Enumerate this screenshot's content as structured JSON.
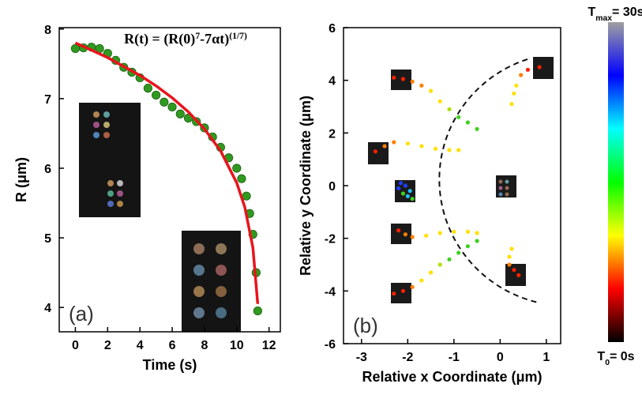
{
  "chart_data": [
    {
      "type": "scatter",
      "panel_label": "(a)",
      "x_label": "Time (s)",
      "y_label": "R (μm)",
      "annotation": [
        {
          "text": "R(t) = (R(0)"
        },
        {
          "text": "7",
          "sup": true
        },
        {
          "text": "-7αt)"
        },
        {
          "text": "(1/7)",
          "sup": true
        }
      ],
      "xlim": [
        -1,
        12.7
      ],
      "ylim": [
        3.65,
        8.02
      ],
      "xticks": [
        0,
        2,
        4,
        6,
        8,
        10,
        12
      ],
      "yticks": [
        4,
        5,
        6,
        7,
        8
      ],
      "series": [
        {
          "mode": "markers",
          "color": "#2f9a1f",
          "x": [
            0,
            0.5,
            1,
            1.5,
            2,
            2.5,
            3,
            3.5,
            4,
            4.5,
            5,
            5.5,
            6,
            6.5,
            7,
            7.5,
            8,
            8.5,
            9,
            9.5,
            10,
            10.3,
            10.6,
            10.8,
            11,
            11.2,
            11.3
          ],
          "y": [
            7.72,
            7.73,
            7.74,
            7.72,
            7.65,
            7.55,
            7.45,
            7.38,
            7.3,
            7.15,
            7.05,
            6.95,
            6.88,
            6.78,
            6.72,
            6.67,
            6.58,
            6.45,
            6.3,
            6.15,
            6.0,
            5.85,
            5.6,
            5.35,
            5.05,
            4.5,
            3.95
          ]
        },
        {
          "mode": "line",
          "color": "#e8141c",
          "x": [
            0,
            1,
            2,
            4,
            5,
            6,
            7,
            8,
            9,
            10,
            10.5,
            11,
            11.3
          ],
          "y": [
            7.8,
            7.698,
            7.589,
            7.334,
            7.184,
            7.012,
            6.81,
            6.565,
            6.249,
            5.789,
            5.44,
            4.86,
            4.05
          ]
        }
      ]
    },
    {
      "type": "scatter",
      "panel_label": "(b)",
      "x_label": "Relative x Coordinate (μm)",
      "y_label": "Relative y Coordinate (μm)",
      "xlim": [
        -3.39,
        1.31
      ],
      "ylim": [
        -6,
        6
      ],
      "xticks": [
        -3,
        -2,
        -1,
        0,
        1
      ],
      "yticks": [
        -6,
        -4,
        -2,
        0,
        2,
        4,
        6
      ],
      "series": [
        {
          "mode": "markers",
          "x": [
            -2.3,
            -2.1,
            -1.9,
            -1.7,
            -1.5,
            -1.3,
            -1.1,
            -0.9,
            -0.7,
            -0.5
          ],
          "y": [
            4.1,
            4.05,
            3.95,
            3.8,
            3.6,
            3.2,
            2.9,
            2.6,
            2.4,
            2.15
          ],
          "colors": [
            "#ff2000",
            "#ff2000",
            "#ff8000",
            "#ff8000",
            "#ffe000",
            "#ffe000",
            "#b0e000",
            "#40d020",
            "#40d020",
            "#40d020"
          ]
        },
        {
          "mode": "markers",
          "x": [
            0.85,
            0.6,
            0.45,
            0.35,
            0.3,
            0.25
          ],
          "y": [
            4.5,
            4.4,
            4.2,
            3.8,
            3.5,
            3.1
          ],
          "colors": [
            "#ff2000",
            "#ff2000",
            "#ff8000",
            "#ffe000",
            "#ffe000",
            "#ffe000"
          ]
        },
        {
          "mode": "markers",
          "x": [
            -2.7,
            -2.5,
            -2.3,
            -2.0,
            -1.7,
            -1.4,
            -1.1,
            -0.9
          ],
          "y": [
            1.3,
            1.5,
            1.65,
            1.6,
            1.5,
            1.4,
            1.35,
            1.35
          ],
          "colors": [
            "#ff2000",
            "#ff8000",
            "#ff8000",
            "#ffe000",
            "#ffe000",
            "#ffe000",
            "#ffe000",
            "#ffe000"
          ]
        },
        {
          "mode": "markers",
          "x": [
            -2.2,
            -2.15,
            -2.05,
            -1.95,
            -2.0,
            -2.1,
            -1.9
          ],
          "y": [
            -0.1,
            0.1,
            0.0,
            -0.2,
            -0.4,
            -0.3,
            -0.5
          ],
          "colors": [
            "#2040ff",
            "#2040ff",
            "#2040ff",
            "#20c0ff",
            "#20c0ff",
            "#40d020",
            "#40d020"
          ]
        },
        {
          "mode": "markers",
          "x": [
            -2.2,
            -2.05,
            -1.9,
            -1.6,
            -1.3,
            -1.0,
            -0.7,
            -0.5
          ],
          "y": [
            -1.7,
            -1.85,
            -1.95,
            -1.9,
            -1.8,
            -1.75,
            -1.75,
            -1.8
          ],
          "colors": [
            "#ff2000",
            "#ff8000",
            "#ff8000",
            "#ffe000",
            "#ffe000",
            "#ffe000",
            "#ffe000",
            "#ffe000"
          ]
        },
        {
          "mode": "markers",
          "x": [
            -2.3,
            -2.1,
            -1.9,
            -1.7,
            -1.5,
            -1.3,
            -1.1,
            -0.9,
            -0.7,
            -0.5
          ],
          "y": [
            -4.1,
            -4.0,
            -3.85,
            -3.6,
            -3.3,
            -3.0,
            -2.8,
            -2.55,
            -2.3,
            -2.1
          ],
          "colors": [
            "#ff2000",
            "#ff2000",
            "#ff8000",
            "#ffe000",
            "#ffe000",
            "#b0e000",
            "#40d020",
            "#40d020",
            "#40d020",
            "#40d020"
          ]
        },
        {
          "mode": "markers",
          "x": [
            0.4,
            0.3,
            0.2,
            0.2,
            0.25
          ],
          "y": [
            -3.4,
            -3.2,
            -3.0,
            -2.7,
            -2.4
          ],
          "colors": [
            "#ff2000",
            "#ff2000",
            "#ff8000",
            "#ffe000",
            "#ffe000"
          ]
        }
      ]
    }
  ],
  "colorbar": {
    "colors": [
      "#000000",
      "#ff0000",
      "#ffff00",
      "#00ff00",
      "#00ffff",
      "#0000ff",
      "#a0a0a0"
    ],
    "max_label": [
      {
        "text": "T"
      },
      {
        "text": "max",
        "sub": true
      },
      {
        "text": "= 30s"
      }
    ],
    "min_label": [
      {
        "text": "T"
      },
      {
        "text": "0",
        "sub": true
      },
      {
        "text": "= 0s"
      }
    ]
  }
}
